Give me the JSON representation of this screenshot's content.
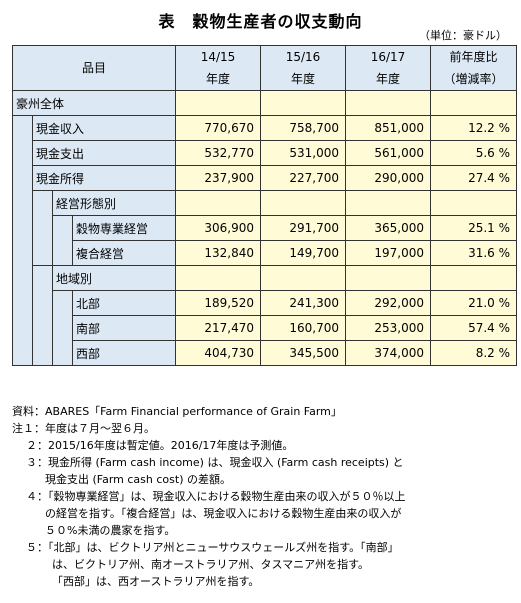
{
  "title": "表　穀物生産者の収支動向",
  "unit": "（単位：豪ドル）",
  "table": {
    "header_item": "品目",
    "col1_a": "14/15",
    "col1_b": "年度",
    "col2_a": "15/16",
    "col2_b": "年度",
    "col3_a": "16/17",
    "col3_b": "年度",
    "col4_a": "前年度比",
    "col4_b": "（増減率）",
    "rows": [
      {
        "label": "豪州全体",
        "v1": "",
        "v2": "",
        "v3": "",
        "v4": ""
      },
      {
        "label": "現金収入",
        "v1": "770,670",
        "v2": "758,700",
        "v3": "851,000",
        "v4": "12.2 %"
      },
      {
        "label": "現金支出",
        "v1": "532,770",
        "v2": "531,000",
        "v3": "561,000",
        "v4": "5.6 %"
      },
      {
        "label": "現金所得",
        "v1": "237,900",
        "v2": "227,700",
        "v3": "290,000",
        "v4": "27.4 %"
      },
      {
        "label": "経営形態別",
        "v1": "",
        "v2": "",
        "v3": "",
        "v4": ""
      },
      {
        "label": "穀物専業経営",
        "v1": "306,900",
        "v2": "291,700",
        "v3": "365,000",
        "v4": "25.1 %"
      },
      {
        "label": "複合経営",
        "v1": "132,840",
        "v2": "149,700",
        "v3": "197,000",
        "v4": "31.6 %"
      },
      {
        "label": "地域別",
        "v1": "",
        "v2": "",
        "v3": "",
        "v4": ""
      },
      {
        "label": "北部",
        "v1": "189,520",
        "v2": "241,300",
        "v3": "292,000",
        "v4": "21.0 %"
      },
      {
        "label": "南部",
        "v1": "217,470",
        "v2": "160,700",
        "v3": "253,000",
        "v4": "57.4 %"
      },
      {
        "label": "西部",
        "v1": "404,730",
        "v2": "345,500",
        "v3": "374,000",
        "v4": "8.2 %"
      }
    ]
  },
  "notes": [
    "資料：ABARES「Farm Financial performance of Grain Farm」",
    "注１：年度は７月～翌６月。",
    "２：2015/16年度は暫定値。2016/17年度は予測値。",
    "３：現金所得 (Farm cash income) は、現金収入 (Farm cash receipts) と",
    "現金支出 (Farm cash cost) の差額。",
    "４：「穀物専業経営」は、現金収入における穀物生産由来の収入が５０％以上",
    "の経営を指す。「複合経営」は、現金収入における穀物生産由来の収入が",
    "５０%未満の農家を指す。",
    "５：「北部」は、ビクトリア州とニューサウスウェールズ州を指す。「南部」",
    "は、ビクトリア州、南オーストラリア州、タスマニア州を指す。",
    "「西部」は、西オーストラリア州を指す。"
  ]
}
